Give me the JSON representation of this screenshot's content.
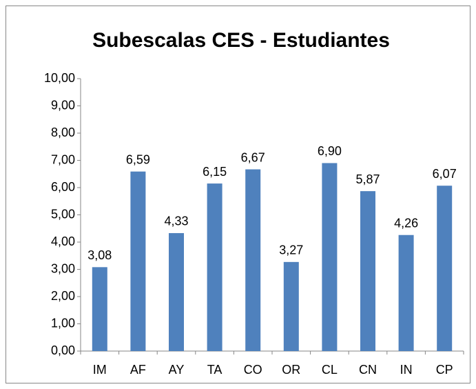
{
  "chart_data": {
    "type": "bar",
    "title": "Subescalas CES - Estudiantes",
    "categories": [
      "IM",
      "AF",
      "AY",
      "TA",
      "CO",
      "OR",
      "CL",
      "CN",
      "IN",
      "CP"
    ],
    "values": [
      3.08,
      6.59,
      4.33,
      6.15,
      6.67,
      3.27,
      6.9,
      5.87,
      4.26,
      6.07
    ],
    "value_labels": [
      "3,08",
      "6,59",
      "4,33",
      "6,15",
      "6,67",
      "3,27",
      "6,90",
      "5,87",
      "4,26",
      "6,07"
    ],
    "color": "#4f81bd",
    "ylim": [
      0,
      10
    ],
    "yticks": [
      {
        "value": 0,
        "label": "0,00"
      },
      {
        "value": 1,
        "label": "1,00"
      },
      {
        "value": 2,
        "label": "2,00"
      },
      {
        "value": 3,
        "label": "3,00"
      },
      {
        "value": 4,
        "label": "4,00"
      },
      {
        "value": 5,
        "label": "5,00"
      },
      {
        "value": 6,
        "label": "6,00"
      },
      {
        "value": 7,
        "label": "7,00"
      },
      {
        "value": 8,
        "label": "8,00"
      },
      {
        "value": 9,
        "label": "9,00"
      },
      {
        "value": 10,
        "label": "10,00"
      }
    ],
    "grid": false
  }
}
